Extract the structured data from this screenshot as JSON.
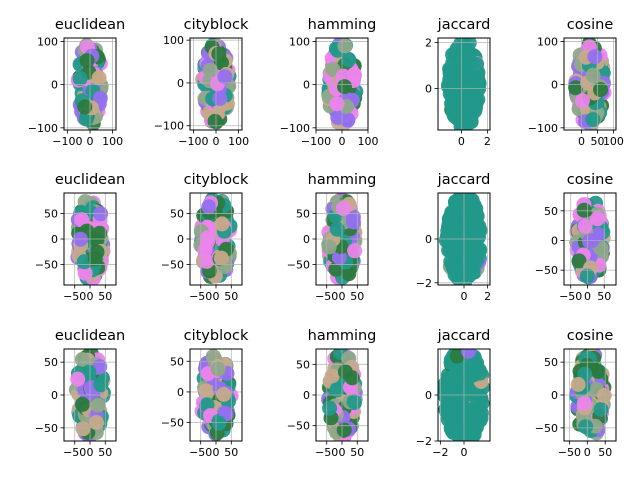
{
  "chart_data": {
    "type": "scatter",
    "rows": 3,
    "cols": 5,
    "colors": [
      "#ee82ee",
      "#9370f0",
      "#2a7a3e",
      "#22998a",
      "#8fa88a",
      "#c7a98a"
    ],
    "grid": true,
    "panels": [
      {
        "title": "euclidean",
        "xlim": [
          -115,
          115
        ],
        "ylim": [
          -105,
          108
        ],
        "xticks": [
          -100,
          0,
          100
        ],
        "xticklabels": [
          "−100",
          "0",
          "100"
        ],
        "yticks": [
          -100,
          0,
          100
        ],
        "yticklabels": [
          "−100",
          "0",
          "100"
        ],
        "xspread": 55,
        "yspread": 95
      },
      {
        "title": "cityblock",
        "xlim": [
          -115,
          115
        ],
        "ylim": [
          -110,
          105
        ],
        "xticks": [
          -100,
          0,
          100
        ],
        "xticklabels": [
          "−100",
          "0",
          "100"
        ],
        "yticks": [
          -100,
          0,
          100
        ],
        "yticklabels": [
          "−100",
          "0",
          "100"
        ],
        "xspread": 60,
        "yspread": 95
      },
      {
        "title": "hamming",
        "xlim": [
          -100,
          100
        ],
        "ylim": [
          -105,
          108
        ],
        "xticks": [
          -100,
          0,
          100
        ],
        "xticklabels": [
          "−100",
          "0",
          "100"
        ],
        "yticks": [
          -100,
          0,
          100
        ],
        "yticklabels": [
          "−100",
          "0",
          "100"
        ],
        "xspread": 55,
        "yspread": 95
      },
      {
        "title": "jaccard",
        "xlim": [
          -1.8,
          2.2
        ],
        "ylim": [
          -1.8,
          2.2
        ],
        "xticks": [
          0,
          2
        ],
        "xticklabels": [
          "0",
          "2"
        ],
        "yticks": [
          0,
          2
        ],
        "yticklabels": [
          "0",
          "2"
        ],
        "xspread": 1.2,
        "yspread": 1.9,
        "solid": true
      },
      {
        "title": "cosine",
        "xlim": [
          -55,
          108
        ],
        "ylim": [
          -105,
          108
        ],
        "xticks": [
          0,
          50,
          100
        ],
        "xticklabels": [
          "0",
          "50",
          "100"
        ],
        "yticks": [
          -100,
          0,
          100
        ],
        "yticklabels": [
          "−100",
          "0",
          "100"
        ],
        "xspread": 45,
        "yspread": 95
      },
      {
        "title": "euclidean",
        "xlim": [
          -85,
          85
        ],
        "ylim": [
          -90,
          90
        ],
        "xticks": [
          -50,
          0,
          50
        ],
        "xticklabels": [
          "−50",
          "0",
          "50"
        ],
        "yticks": [
          -50,
          0,
          50
        ],
        "yticklabels": [
          "−50",
          "0",
          "50"
        ],
        "xspread": 45,
        "yspread": 80
      },
      {
        "title": "cityblock",
        "xlim": [
          -85,
          85
        ],
        "ylim": [
          -90,
          90
        ],
        "xticks": [
          -50,
          0,
          50
        ],
        "xticklabels": [
          "−50",
          "0",
          "50"
        ],
        "yticks": [
          -50,
          0,
          50
        ],
        "yticklabels": [
          "−50",
          "0",
          "50"
        ],
        "xspread": 50,
        "yspread": 80
      },
      {
        "title": "hamming",
        "xlim": [
          -85,
          85
        ],
        "ylim": [
          -90,
          90
        ],
        "xticks": [
          -50,
          0,
          50
        ],
        "xticklabels": [
          "−50",
          "0",
          "50"
        ],
        "yticks": [
          -50,
          0,
          50
        ],
        "yticklabels": [
          "−50",
          "0",
          "50"
        ],
        "xspread": 45,
        "yspread": 80
      },
      {
        "title": "jaccard",
        "xlim": [
          -2.2,
          2.2
        ],
        "ylim": [
          -2.1,
          2.1
        ],
        "xticks": [
          0,
          2
        ],
        "xticklabels": [
          "0",
          "2"
        ],
        "yticks": [
          -2,
          0
        ],
        "yticklabels": [
          "−2",
          "0"
        ],
        "xspread": 1.5,
        "yspread": 2.0,
        "solid": true
      },
      {
        "title": "cosine",
        "xlim": [
          -70,
          85
        ],
        "ylim": [
          -75,
          80
        ],
        "xticks": [
          -50,
          0,
          50
        ],
        "xticklabels": [
          "−50",
          "0",
          "50"
        ],
        "yticks": [
          -50,
          0,
          50
        ],
        "yticklabels": [
          "−50",
          "0",
          "50"
        ],
        "xspread": 40,
        "yspread": 70
      },
      {
        "title": "euclidean",
        "xlim": [
          -85,
          85
        ],
        "ylim": [
          -70,
          70
        ],
        "xticks": [
          -50,
          0,
          50
        ],
        "xticklabels": [
          "−50",
          "0",
          "50"
        ],
        "yticks": [
          -50,
          0,
          50
        ],
        "yticklabels": [
          "−50",
          "0",
          "50"
        ],
        "xspread": 45,
        "yspread": 65
      },
      {
        "title": "cityblock",
        "xlim": [
          -85,
          85
        ],
        "ylim": [
          -80,
          70
        ],
        "xticks": [
          -50,
          0,
          50
        ],
        "xticklabels": [
          "−50",
          "0",
          "50"
        ],
        "yticks": [
          -50,
          0,
          50
        ],
        "yticklabels": [
          "−50",
          "0",
          "50"
        ],
        "xspread": 50,
        "yspread": 65
      },
      {
        "title": "hamming",
        "xlim": [
          -85,
          85
        ],
        "ylim": [
          -75,
          75
        ],
        "xticks": [
          -50,
          0,
          50
        ],
        "xticklabels": [
          "−50",
          "0",
          "50"
        ],
        "yticks": [
          -50,
          0,
          50
        ],
        "yticklabels": [
          "−50",
          "0",
          "50"
        ],
        "xspread": 45,
        "yspread": 70
      },
      {
        "title": "jaccard",
        "xlim": [
          -2.2,
          2.2
        ],
        "ylim": [
          -2.0,
          2.0
        ],
        "xticks": [
          -2,
          0
        ],
        "xticklabels": [
          "−2",
          "0"
        ],
        "yticks": [
          -2,
          0
        ],
        "yticklabels": [
          "−2",
          "0"
        ],
        "xspread": 1.7,
        "yspread": 2.0,
        "solid": true
      },
      {
        "title": "cosine",
        "xlim": [
          -65,
          80
        ],
        "ylim": [
          -70,
          70
        ],
        "xticks": [
          -50,
          0,
          50
        ],
        "xticklabels": [
          "−50",
          "0",
          "50"
        ],
        "yticks": [
          -50,
          0,
          50
        ],
        "yticklabels": [
          "−50",
          "0",
          "50"
        ],
        "xspread": 40,
        "yspread": 65
      }
    ]
  }
}
